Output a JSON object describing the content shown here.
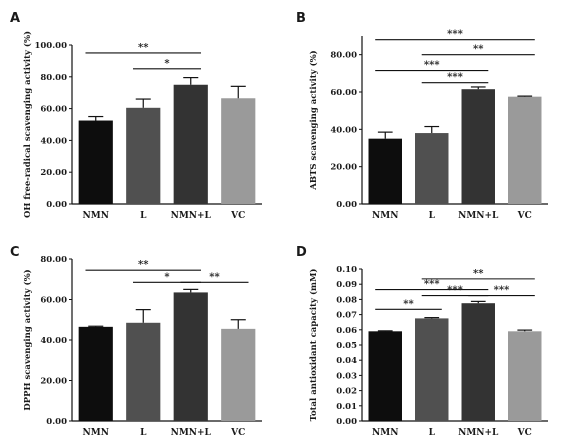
{
  "chart_data": [
    {
      "panel": "A",
      "type": "bar",
      "ylabel": "OH free-radical scavenging activity (%)",
      "categories": [
        "NMN",
        "L",
        "NMN+L",
        "VC"
      ],
      "values": [
        52.5,
        60.5,
        75,
        66.5
      ],
      "errors": [
        2.5,
        5.5,
        4.5,
        7.5
      ],
      "colors": [
        "#0d0d0d",
        "#505050",
        "#333333",
        "#9a9a9a"
      ],
      "ylim": [
        0,
        100
      ],
      "yticks": [
        0,
        20,
        40,
        60,
        80,
        100
      ],
      "tick_labels": [
        "0.00",
        "20.00",
        "40.00",
        "60.00",
        "80.00",
        "100.00"
      ],
      "significance": [
        {
          "from": 0,
          "to": 2,
          "label": "**",
          "y": 95
        },
        {
          "from": 1,
          "to": 2,
          "label": "*",
          "y": 85
        }
      ]
    },
    {
      "panel": "B",
      "type": "bar",
      "ylabel": "ABTS scavenging activity (%)",
      "categories": [
        "NMN",
        "L",
        "NMN+L",
        "VC"
      ],
      "values": [
        35,
        38,
        61.5,
        57.5
      ],
      "errors": [
        3.5,
        3.5,
        1.2,
        0.3
      ],
      "colors": [
        "#0d0d0d",
        "#505050",
        "#333333",
        "#9a9a9a"
      ],
      "ylim": [
        0,
        90
      ],
      "yticks": [
        0,
        20,
        40,
        60,
        80
      ],
      "tick_labels": [
        "0.00",
        "20.00",
        "40.00",
        "60.00",
        "80.00"
      ],
      "significance": [
        {
          "from": 0,
          "to": 3,
          "label": "***",
          "y": 88
        },
        {
          "from": 1,
          "to": 3,
          "label": "**",
          "y": 80
        },
        {
          "from": 0,
          "to": 2,
          "label": "***",
          "y": 71.5
        },
        {
          "from": 1,
          "to": 2,
          "label": "***",
          "y": 65
        }
      ]
    },
    {
      "panel": "C",
      "type": "bar",
      "ylabel": "DPPH scavenging activity (%)",
      "categories": [
        "NMN",
        "L",
        "NMN+L",
        "VC"
      ],
      "values": [
        46.5,
        48.5,
        63.5,
        45.5
      ],
      "errors": [
        0.3,
        6.5,
        1.5,
        4.5
      ],
      "colors": [
        "#0d0d0d",
        "#505050",
        "#333333",
        "#9a9a9a"
      ],
      "ylim": [
        0,
        80
      ],
      "yticks": [
        0,
        20,
        40,
        60,
        80
      ],
      "tick_labels": [
        "0.00",
        "20.00",
        "40.00",
        "60.00",
        "80.00"
      ],
      "significance": [
        {
          "from": 0,
          "to": 2,
          "label": "**",
          "y": 74.5
        },
        {
          "from": 1,
          "to": 2,
          "label": "*",
          "y": 68.5
        },
        {
          "from": 2,
          "to": 3,
          "label": "**",
          "y": 68.5
        }
      ]
    },
    {
      "panel": "D",
      "type": "bar",
      "ylabel": "Total antioxidant capacity (mM)",
      "categories": [
        "NMN",
        "L",
        "NMN+L",
        "VC"
      ],
      "values": [
        0.059,
        0.0675,
        0.0775,
        0.059
      ],
      "errors": [
        0.0003,
        0.0005,
        0.0012,
        0.0008
      ],
      "colors": [
        "#0d0d0d",
        "#505050",
        "#333333",
        "#9a9a9a"
      ],
      "ylim": [
        0,
        0.1
      ],
      "yticks": [
        0,
        0.01,
        0.02,
        0.03,
        0.04,
        0.05,
        0.06,
        0.07,
        0.08,
        0.09,
        0.1
      ],
      "tick_labels": [
        "0.00",
        "0.01",
        "0.02",
        "0.03",
        "0.04",
        "0.05",
        "0.06",
        "0.07",
        "0.08",
        "0.09",
        "0.10"
      ],
      "significance": [
        {
          "from": 1,
          "to": 3,
          "label": "**",
          "y": 0.0935
        },
        {
          "from": 0,
          "to": 2,
          "label": "***",
          "y": 0.0865
        },
        {
          "from": 1,
          "to": 2,
          "label": "***",
          "y": 0.0825
        },
        {
          "from": 2,
          "to": 3,
          "label": "***",
          "y": 0.0825
        },
        {
          "from": 0,
          "to": 1,
          "label": "**",
          "y": 0.0735
        }
      ]
    }
  ]
}
